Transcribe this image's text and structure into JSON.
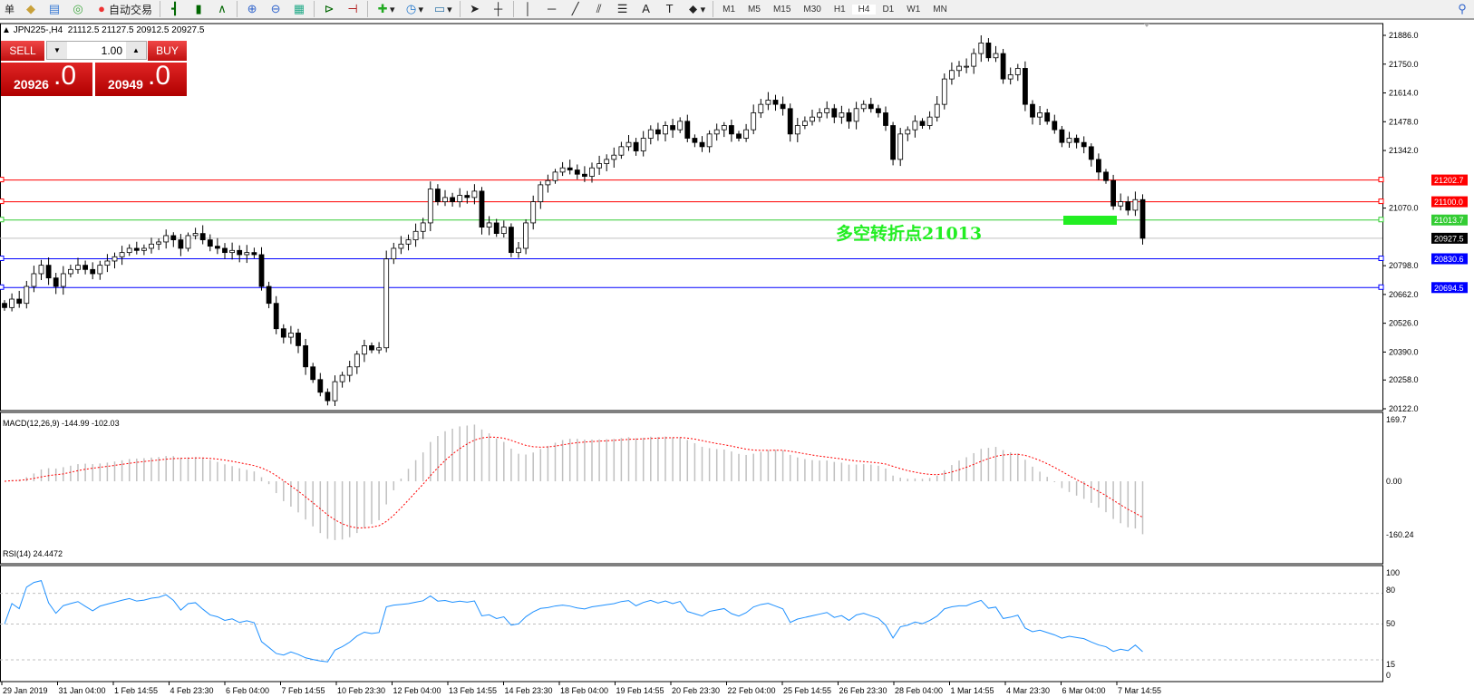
{
  "toolbar": {
    "left_text": "单",
    "auto_trade": "自动交易",
    "timeframes": [
      "M1",
      "M5",
      "M15",
      "M30",
      "H1",
      "H4",
      "D1",
      "W1",
      "MN"
    ],
    "active_timeframe": "H4",
    "icons": [
      "book-icon",
      "terminal-icon",
      "signal-icon",
      "bar-chart-icon",
      "candlestick-icon",
      "line-chart-icon",
      "zoom-in-icon",
      "zoom-out-icon",
      "tile-icon",
      "autoscroll-icon",
      "chart-shift-icon",
      "new-chart-icon",
      "clock-icon",
      "templates-icon",
      "cursor-icon",
      "crosshair-icon",
      "vertical-line-icon",
      "horizontal-line-icon",
      "trendline-icon",
      "equidistant-channel-icon",
      "fibonacci-icon",
      "text-icon",
      "text-label-icon",
      "arrows-icon",
      "search-icon"
    ]
  },
  "header": {
    "symbol": "JPN225-,H4",
    "ohlc": "21112.5 21127.5 20912.5 20927.5"
  },
  "trade": {
    "sell_label": "SELL",
    "buy_label": "BUY",
    "lot": "1.00",
    "sell_big": "20926",
    "sell_frac": ".0",
    "buy_big": "20949",
    "buy_frac": ".0"
  },
  "annotation": {
    "text": "多空转折点21013",
    "color": "#22ee22"
  },
  "chart_data": [
    {
      "type": "candlestick",
      "title": "JPN225-,H4",
      "ylim": [
        20122,
        21886
      ],
      "yticks": [
        "21886.0",
        "21750.0",
        "21614.0",
        "21478.0",
        "21342.0",
        "21070.0",
        "20798.0",
        "20662.0",
        "20526.0",
        "20390.0",
        "20258.0",
        "20122.0"
      ],
      "xticks": [
        "29 Jan 2019",
        "31 Jan 04:00",
        "1 Feb 14:55",
        "4 Feb 23:30",
        "6 Feb 04:00",
        "7 Feb 14:55",
        "10 Feb 23:30",
        "12 Feb 04:00",
        "13 Feb 14:55",
        "14 Feb 23:30",
        "18 Feb 04:00",
        "19 Feb 14:55",
        "20 Feb 23:30",
        "22 Feb 04:00",
        "25 Feb 14:55",
        "26 Feb 23:30",
        "28 Feb 04:00",
        "1 Mar 14:55",
        "4 Mar 23:30",
        "6 Mar 04:00",
        "7 Mar 14:55"
      ],
      "hlines": [
        {
          "value": 21202.7,
          "label": "21202.7",
          "color": "#ff0000"
        },
        {
          "value": 21100.0,
          "label": "21100.0",
          "color": "#ff0000"
        },
        {
          "value": 21013.7,
          "label": "21013.7",
          "color": "#33cc33"
        },
        {
          "value": 20927.5,
          "label": "20927.5",
          "color": "#000000",
          "line": "#c0c0c0"
        },
        {
          "value": 20830.6,
          "label": "20830.6",
          "color": "#0000ff"
        },
        {
          "value": 20694.5,
          "label": "20694.5",
          "color": "#0000ff"
        }
      ],
      "closes": [
        20600,
        20640,
        20620,
        20700,
        20760,
        20800,
        20740,
        20700,
        20760,
        20780,
        20800,
        20780,
        20760,
        20800,
        20820,
        20840,
        20860,
        20880,
        20870,
        20880,
        20900,
        20910,
        20940,
        20920,
        20880,
        20940,
        20950,
        20920,
        20890,
        20880,
        20860,
        20870,
        20850,
        20860,
        20850,
        20700,
        20620,
        20500,
        20460,
        20480,
        20420,
        20320,
        20260,
        20200,
        20160,
        20250,
        20280,
        20320,
        20380,
        20420,
        20400,
        20410,
        20830,
        20880,
        20900,
        20920,
        20960,
        21000,
        21160,
        21100,
        21120,
        21100,
        21130,
        21120,
        21150,
        20980,
        21000,
        20950,
        20980,
        20860,
        20880,
        21000,
        21100,
        21180,
        21200,
        21240,
        21260,
        21250,
        21230,
        21220,
        21260,
        21280,
        21300,
        21320,
        21360,
        21380,
        21340,
        21400,
        21440,
        21420,
        21460,
        21440,
        21480,
        21400,
        21380,
        21360,
        21420,
        21440,
        21460,
        21420,
        21400,
        21440,
        21520,
        21560,
        21580,
        21560,
        21540,
        21420,
        21460,
        21480,
        21500,
        21520,
        21540,
        21500,
        21520,
        21480,
        21540,
        21560,
        21540,
        21520,
        21460,
        21300,
        21420,
        21440,
        21480,
        21460,
        21500,
        21560,
        21680,
        21720,
        21740,
        21740,
        21800,
        21850,
        21780,
        21800,
        21680,
        21700,
        21730,
        21560,
        21500,
        21520,
        21480,
        21440,
        21380,
        21400,
        21380,
        21360,
        21300,
        21240,
        21200,
        21080,
        21100,
        21060,
        21110,
        20927.5
      ]
    },
    {
      "type": "macd",
      "label": "MACD(12,26,9) -144.99 -102.03",
      "ylim": [
        -160.24,
        169.7
      ],
      "yticks": [
        "169.7",
        "0.00",
        "-160.24"
      ],
      "histogram_color": "#c0c0c0",
      "signal_color": "#ff0000"
    },
    {
      "type": "line",
      "label": "RSI(14) 24.4472",
      "ylim": [
        0,
        100
      ],
      "yticks": [
        "100",
        "80",
        "50",
        "15",
        "0"
      ],
      "levels": [
        80,
        50,
        15
      ],
      "color": "#1e90ff"
    }
  ]
}
